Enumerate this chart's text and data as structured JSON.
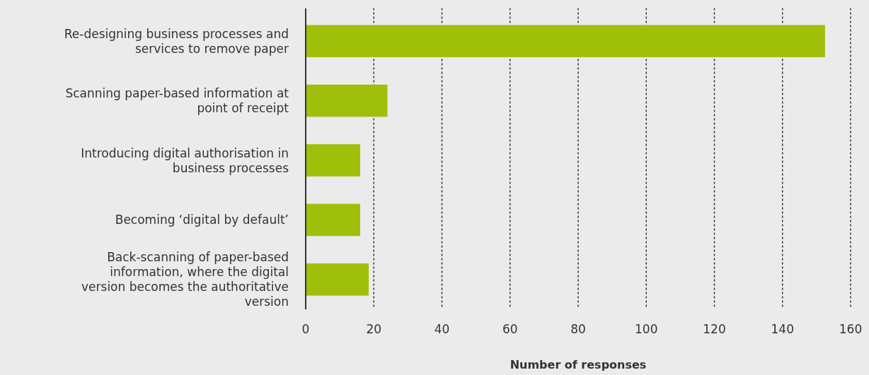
{
  "chart_data": {
    "type": "bar",
    "orientation": "horizontal",
    "xlabel": "Number of responses",
    "categories": [
      "Re-designing business processes and services to remove paper",
      "Scanning paper-based information at point of receipt",
      "Introducing digital authorisation in business processes",
      "Becoming ‘digital by default’",
      "Back-scanning of paper-based information, where the digital version becomes the authoritative version"
    ],
    "values": [
      152.5,
      24,
      16,
      16,
      18.5
    ],
    "color": "#a0bf0a",
    "xlim": [
      0,
      160
    ],
    "xticks": [
      0,
      20,
      40,
      60,
      80,
      100,
      120,
      140,
      160
    ],
    "grid": "x",
    "line_style": "dotted"
  }
}
